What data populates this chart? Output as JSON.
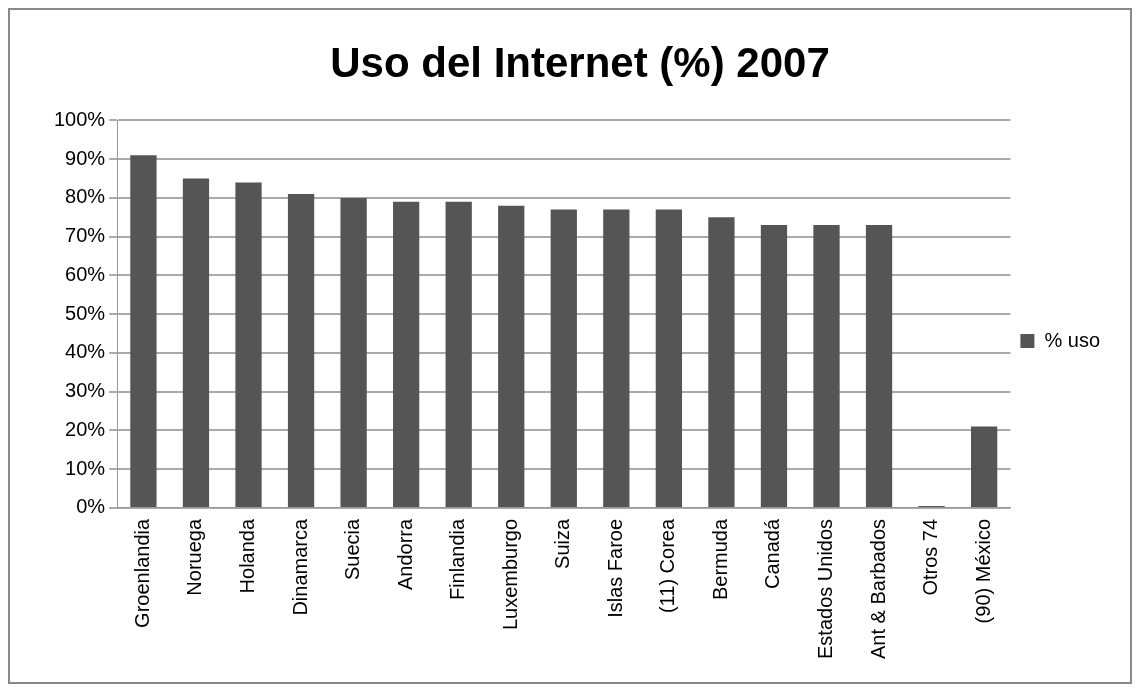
{
  "chart_data": {
    "type": "bar",
    "title": "Uso del Internet (%) 2007",
    "categories": [
      "Groenlandia",
      "Noruega",
      "Holanda",
      "Dinamarca",
      "Suecia",
      "Andorra",
      "Finlandia",
      "Luxemburgo",
      "Suiza",
      "Islas Faroe",
      "(11) Corea",
      "Bermuda",
      "Canadá",
      "Estados Unidos",
      "Ant & Barbados",
      "Otros 74",
      "(90) México"
    ],
    "series": [
      {
        "name": "% uso",
        "color": "#555555",
        "values": [
          91,
          85,
          84,
          81,
          80,
          79,
          79,
          78,
          77,
          77,
          77,
          75,
          73,
          73,
          73,
          0.5,
          21
        ]
      }
    ],
    "ylim": [
      0,
      100
    ],
    "yticks": [
      {
        "value": 0,
        "label": "0%"
      },
      {
        "value": 10,
        "label": "10%"
      },
      {
        "value": 20,
        "label": "20%"
      },
      {
        "value": 30,
        "label": "30%"
      },
      {
        "value": 40,
        "label": "40%"
      },
      {
        "value": 50,
        "label": "50%"
      },
      {
        "value": 60,
        "label": "60%"
      },
      {
        "value": 70,
        "label": "70%"
      },
      {
        "value": 80,
        "label": "80%"
      },
      {
        "value": 90,
        "label": "90%"
      },
      {
        "value": 100,
        "label": "100%"
      }
    ],
    "grid": "y",
    "legend": "right"
  }
}
